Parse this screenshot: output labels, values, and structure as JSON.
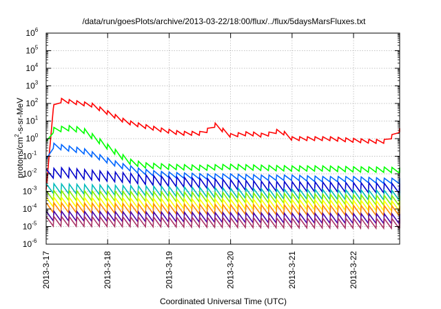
{
  "chart_data": {
    "type": "line",
    "title": "/data/run/goesPlots/archive/2013-03-22/18:00/flux/../flux/5daysMarsFluxes.txt",
    "xlabel": "Coordinated Universal Time (UTC)",
    "ylabel": "protons/cm²-s-sr-MeV",
    "ylabel_parts": {
      "prefix": "protons/cm",
      "superscript": "2",
      "suffix": "-s-sr-MeV"
    },
    "y_scale": "log",
    "ylim": [
      1e-06,
      1000000.0
    ],
    "y_ticks": [
      {
        "base": "10",
        "exp": "6"
      },
      {
        "base": "10",
        "exp": "5"
      },
      {
        "base": "10",
        "exp": "4"
      },
      {
        "base": "10",
        "exp": "3"
      },
      {
        "base": "10",
        "exp": "2"
      },
      {
        "base": "10",
        "exp": "1"
      },
      {
        "base": "10",
        "exp": "0"
      },
      {
        "base": "10",
        "exp": "-1"
      },
      {
        "base": "10",
        "exp": "-2"
      },
      {
        "base": "10",
        "exp": "-3"
      },
      {
        "base": "10",
        "exp": "-4"
      },
      {
        "base": "10",
        "exp": "-5"
      },
      {
        "base": "10",
        "exp": "-6"
      }
    ],
    "xlim": [
      "2013-03-17T00:00",
      "2013-03-22T18:00"
    ],
    "x_ticks": [
      "2013-3-17",
      "2013-3-18",
      "2013-3-19",
      "2013-3-20",
      "2013-3-21",
      "2013-3-22"
    ],
    "grid": true,
    "series": [
      {
        "color": "#ff0000",
        "values": [
          [
            0,
            0.001
          ],
          [
            0.04,
            30
          ],
          [
            0.08,
            50
          ],
          [
            0.25,
            150
          ],
          [
            0.5,
            110
          ],
          [
            0.75,
            80
          ],
          [
            1.0,
            30
          ],
          [
            1.3,
            9
          ],
          [
            1.6,
            5
          ],
          [
            1.9,
            3
          ],
          [
            2.2,
            2
          ],
          [
            2.55,
            2
          ],
          [
            2.75,
            6
          ],
          [
            3.0,
            1.5
          ],
          [
            3.3,
            2
          ],
          [
            3.55,
            1.5
          ],
          [
            3.8,
            3
          ],
          [
            4.0,
            1
          ],
          [
            4.3,
            1
          ],
          [
            4.6,
            1
          ],
          [
            5.0,
            0.8
          ],
          [
            5.3,
            0.7
          ],
          [
            5.5,
            0.7
          ],
          [
            5.65,
            1.5
          ],
          [
            5.75,
            3
          ]
        ]
      },
      {
        "color": "#00ff00",
        "values": [
          [
            0,
            0.5
          ],
          [
            0.1,
            3
          ],
          [
            0.35,
            4
          ],
          [
            0.6,
            3
          ],
          [
            0.85,
            0.8
          ],
          [
            1.1,
            0.2
          ],
          [
            1.35,
            0.05
          ],
          [
            1.6,
            0.03
          ],
          [
            2.0,
            0.025
          ],
          [
            2.5,
            0.022
          ],
          [
            3.0,
            0.025
          ],
          [
            3.5,
            0.022
          ],
          [
            4.0,
            0.02
          ],
          [
            4.5,
            0.02
          ],
          [
            5.0,
            0.018
          ],
          [
            5.5,
            0.017
          ],
          [
            5.75,
            0.016
          ]
        ]
      },
      {
        "color": "#0066ff",
        "values": [
          [
            0,
            0.05
          ],
          [
            0.1,
            0.4
          ],
          [
            0.3,
            0.3
          ],
          [
            0.6,
            0.2
          ],
          [
            0.9,
            0.08
          ],
          [
            1.2,
            0.03
          ],
          [
            1.5,
            0.015
          ],
          [
            1.8,
            0.01
          ],
          [
            2.2,
            0.008
          ],
          [
            2.6,
            0.007
          ],
          [
            3.0,
            0.007
          ],
          [
            3.5,
            0.006
          ],
          [
            4.0,
            0.006
          ],
          [
            4.5,
            0.005
          ],
          [
            5.0,
            0.005
          ],
          [
            5.5,
            0.004
          ],
          [
            5.75,
            0.004
          ]
        ]
      },
      {
        "color": "#0000cc",
        "values": [
          [
            0,
            0.01
          ],
          [
            0.3,
            0.012
          ],
          [
            0.8,
            0.008
          ],
          [
            1.3,
            0.006
          ],
          [
            1.8,
            0.004
          ],
          [
            2.5,
            0.003
          ],
          [
            3.5,
            0.002
          ],
          [
            4.5,
            0.0018
          ],
          [
            5.75,
            0.0015
          ]
        ]
      },
      {
        "color": "#00bbbb",
        "values": [
          [
            0,
            0.0015
          ],
          [
            1.0,
            0.0012
          ],
          [
            2.0,
            0.001
          ],
          [
            3.0,
            0.0008
          ],
          [
            4.0,
            0.0007
          ],
          [
            5.75,
            0.0006
          ]
        ]
      },
      {
        "color": "#88ee00",
        "values": [
          [
            0,
            0.0006
          ],
          [
            2.0,
            0.0005
          ],
          [
            4.0,
            0.0004
          ],
          [
            5.75,
            0.0003
          ]
        ]
      },
      {
        "color": "#ffff00",
        "values": [
          [
            0,
            0.00025
          ],
          [
            2.0,
            0.0002
          ],
          [
            4.0,
            0.00018
          ],
          [
            5.75,
            0.00015
          ]
        ]
      },
      {
        "color": "#ff8800",
        "values": [
          [
            0,
            0.00012
          ],
          [
            2.0,
            0.0001
          ],
          [
            4.0,
            9e-05
          ],
          [
            5.75,
            8e-05
          ]
        ]
      },
      {
        "color": "#4400aa",
        "values": [
          [
            0,
            4e-05
          ],
          [
            2.0,
            3.5e-05
          ],
          [
            4.0,
            3e-05
          ],
          [
            5.75,
            2.8e-05
          ]
        ]
      },
      {
        "color": "#aa3366",
        "values": [
          [
            0,
            2e-05
          ],
          [
            2.0,
            1.8e-05
          ],
          [
            4.0,
            1.6e-05
          ],
          [
            5.75,
            1.5e-05
          ]
        ]
      }
    ]
  }
}
